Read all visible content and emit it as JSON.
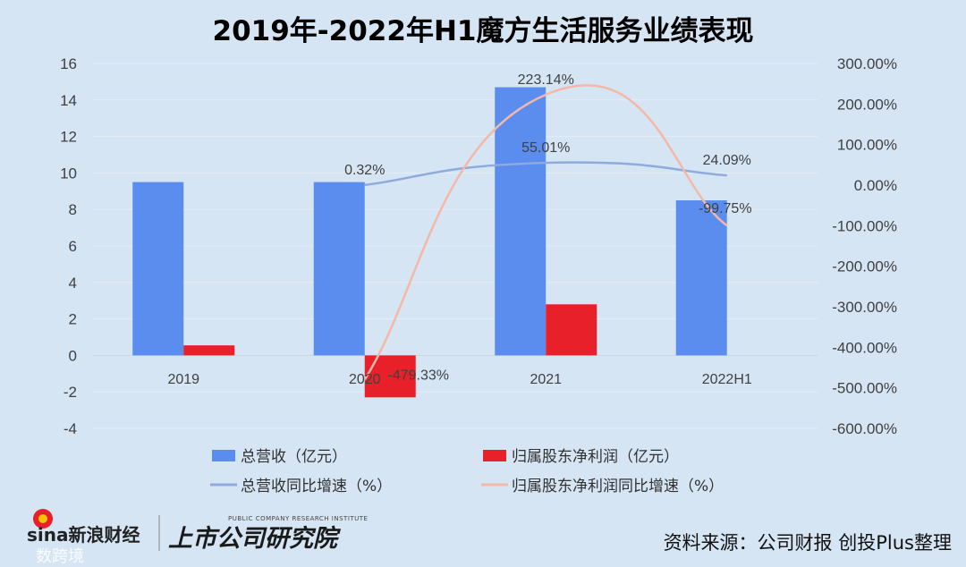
{
  "chart_data": {
    "type": "bar",
    "title": "2019年-2022年H1魔方生活服务业绩表现",
    "categories": [
      "2019",
      "2020",
      "2021",
      "2022H1"
    ],
    "y_left": {
      "ylim": [
        -4,
        16
      ],
      "ticks": [
        "16",
        "14",
        "12",
        "10",
        "8",
        "6",
        "4",
        "2",
        "0",
        "-2",
        "-4"
      ]
    },
    "y_right": {
      "ylim": [
        -600,
        300
      ],
      "ticks": [
        "300.00%",
        "200.00%",
        "100.00%",
        "0.00%",
        "-100.00%",
        "-200.00%",
        "-300.00%",
        "-400.00%",
        "-500.00%",
        "-600.00%"
      ]
    },
    "series": [
      {
        "name": "总营收（亿元）",
        "kind": "bar",
        "axis": "left",
        "color": "#5b8def",
        "values": [
          9.5,
          9.5,
          14.7,
          8.5
        ]
      },
      {
        "name": "归属股东净利润（亿元）",
        "kind": "bar",
        "axis": "left",
        "color": "#e8202a",
        "values": [
          0.55,
          -2.3,
          2.8,
          null
        ]
      },
      {
        "name": "总营收同比增速（%）",
        "kind": "line",
        "axis": "right",
        "color": "#8faadc",
        "values": [
          null,
          0.32,
          55.01,
          24.09
        ],
        "labels": [
          "",
          "0.32%",
          "55.01%",
          "24.09%"
        ]
      },
      {
        "name": "归属股东净利润同比增速（%）",
        "kind": "line",
        "axis": "right",
        "color": "#f4b8a8",
        "values": [
          null,
          -479.33,
          223.14,
          -99.75
        ],
        "labels": [
          "",
          "-479.33%",
          "223.14%",
          "-99.75%"
        ]
      }
    ],
    "legend_placement": "bottom",
    "grid": true
  },
  "source": "资料来源：公司财报 创投Plus整理",
  "logos": {
    "sina": "sina新浪财经",
    "research": "上市公司研究院",
    "research_sub": "PUBLIC COMPANY RESEARCH INSTITUTE",
    "watermark": "数跨境"
  }
}
